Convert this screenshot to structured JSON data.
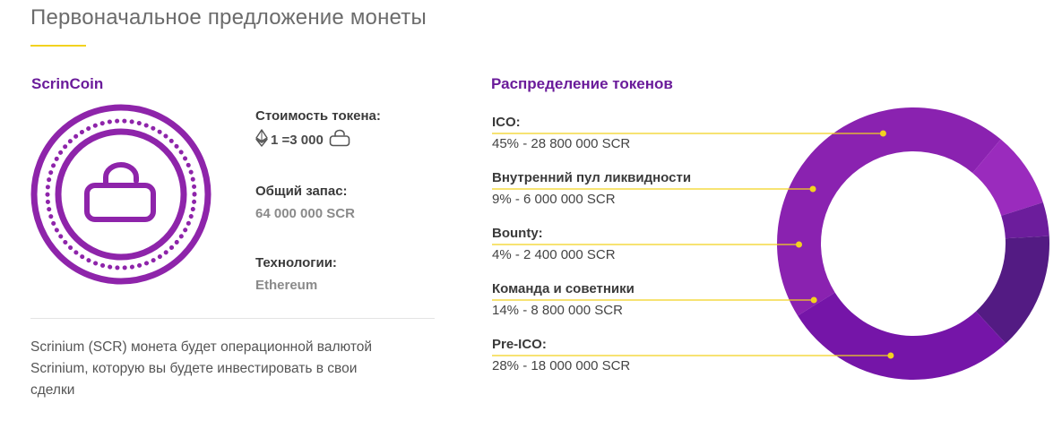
{
  "page": {
    "title": "Первоначальное предложение монеты"
  },
  "coin": {
    "name": "ScrinCoin",
    "price_label": "Стоимость токена:",
    "price_text": "1 =3 000",
    "supply_label": "Общий запас:",
    "supply_value": "64 000 000 SCR",
    "tech_label": "Технологии:",
    "tech_value": "Ethereum",
    "description": "Scrinium (SCR) монета будет операционной валютой Scrinium, которую вы будете инвестировать в свои сделки"
  },
  "icons": {
    "currency": "ethereum-icon",
    "token": "scrincoin-icon",
    "logo": "scrincoin-logo"
  },
  "colors": {
    "accent": "#6a1b9a",
    "underline": "#f2d21f",
    "marker": "#f2d21f"
  },
  "chart_data": {
    "type": "pie",
    "title": "Распределение токенов",
    "donut": true,
    "slices": [
      {
        "label": "ICO:",
        "value_text": "45% - 28 800 000 SCR",
        "percent": 45,
        "amount": 28800000,
        "color": "#8a22b0"
      },
      {
        "label": "Внутренний пул ликвидности",
        "value_text": "9% - 6 000 000 SCR",
        "percent": 9,
        "amount": 6000000,
        "color": "#9a2bbd"
      },
      {
        "label": "Bounty:",
        "value_text": "4% - 2 400 000 SCR",
        "percent": 4,
        "amount": 2400000,
        "color": "#6c1d9c"
      },
      {
        "label": "Команда и советники",
        "value_text": "14% - 8 800 000 SCR",
        "percent": 14,
        "amount": 8800000,
        "color": "#531b83"
      },
      {
        "label": "Pre-ICO:",
        "value_text": "28% - 18 000 000 SCR",
        "percent": 28,
        "amount": 18000000,
        "color": "#7515a8"
      }
    ]
  }
}
